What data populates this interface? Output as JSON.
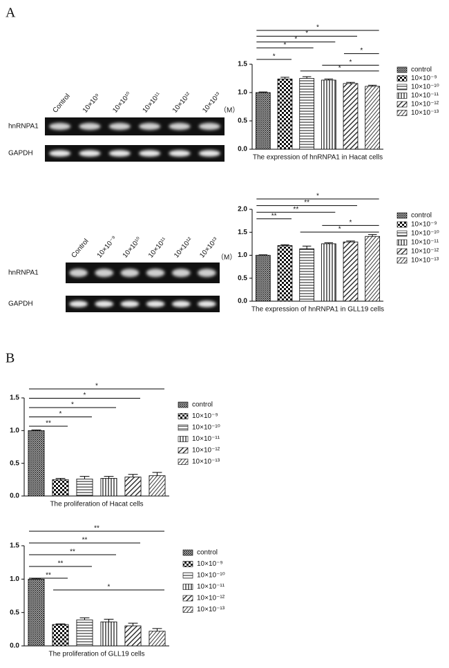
{
  "panel_labels": [
    "A",
    "B"
  ],
  "gels": [
    {
      "lanes": [
        "Control",
        "10×10⁹",
        "10×10¹⁰",
        "10×10¹¹",
        "10×10¹²",
        "10×10¹³"
      ],
      "unit": "（M）",
      "rows": [
        "hnRNPA1",
        "GAPDH"
      ]
    },
    {
      "lanes": [
        "Control",
        "10×10⁻⁹",
        "10×10¹⁰",
        "10×10¹¹",
        "10×10¹²",
        "10×10¹³"
      ],
      "unit": "（M）",
      "rows": [
        "hnRNPA1",
        "GAPDH"
      ]
    }
  ],
  "chart_data": [
    {
      "type": "bar",
      "title": "The expression of hnRNPA1 in Hacat cells",
      "ylim": [
        0,
        1.5
      ],
      "yticks": [
        {
          "value": 0,
          "label": "0.0"
        },
        0.5,
        {
          "value": 1,
          "label": "1.0"
        },
        1.5
      ],
      "series": [
        {
          "name": "control",
          "values": [
            1.0
          ],
          "errors": [
            0.01
          ]
        },
        {
          "name": "10×10⁻⁹",
          "values": [
            1.24
          ],
          "errors": [
            0.03
          ]
        },
        {
          "name": "10×10⁻¹⁰",
          "values": [
            1.25
          ],
          "errors": [
            0.03
          ]
        },
        {
          "name": "10×10⁻¹¹",
          "values": [
            1.22
          ],
          "errors": [
            0.02
          ]
        },
        {
          "name": "10×10⁻¹²",
          "values": [
            1.16
          ],
          "errors": [
            0.02
          ]
        },
        {
          "name": "10×10⁻¹³",
          "values": [
            1.11
          ],
          "errors": [
            0.02
          ]
        }
      ],
      "annotations": [
        {
          "text": "*",
          "from": 0,
          "to": 5
        },
        {
          "text": "*",
          "from": 0,
          "to": 4
        },
        {
          "text": "*",
          "from": 0,
          "to": 3
        },
        {
          "text": "*",
          "from": 0,
          "to": 2
        },
        {
          "text": "*",
          "from": 4,
          "to": 5
        },
        {
          "text": "*",
          "from": 0,
          "to": 1
        },
        {
          "text": "*",
          "from": 3,
          "to": 5
        },
        {
          "text": "*",
          "from": 2,
          "to": 5
        }
      ],
      "legend": "right"
    },
    {
      "type": "bar",
      "title": "The expression of hnRNPA1 in GLL19 cells",
      "ylim": [
        0,
        2
      ],
      "yticks": [
        {
          "value": 0,
          "label": "0.0"
        },
        0.5,
        {
          "value": 1,
          "label": "1.0"
        },
        1.5,
        {
          "value": 2,
          "label": "2.0"
        }
      ],
      "series": [
        {
          "name": "control",
          "values": [
            1.0
          ],
          "errors": [
            0.01
          ]
        },
        {
          "name": "10×10⁻⁹",
          "values": [
            1.21
          ],
          "errors": [
            0.02
          ]
        },
        {
          "name": "10×10⁻¹⁰",
          "values": [
            1.14
          ],
          "errors": [
            0.06
          ]
        },
        {
          "name": "10×10⁻¹¹",
          "values": [
            1.25
          ],
          "errors": [
            0.02
          ]
        },
        {
          "name": "10×10⁻¹²",
          "values": [
            1.29
          ],
          "errors": [
            0.02
          ]
        },
        {
          "name": "10×10⁻¹³",
          "values": [
            1.41
          ],
          "errors": [
            0.04
          ]
        }
      ],
      "annotations": [
        {
          "text": "*",
          "from": 0,
          "to": 5
        },
        {
          "text": "**",
          "from": 0,
          "to": 4
        },
        {
          "text": "**",
          "from": 0,
          "to": 3
        },
        {
          "text": "**",
          "from": 0,
          "to": 1
        },
        {
          "text": "*",
          "from": 3,
          "to": 5
        },
        {
          "text": "*",
          "from": 2,
          "to": 5
        }
      ],
      "legend": "right"
    },
    {
      "type": "bar",
      "title": "The proliferation of Hacat cells",
      "ylim": [
        0,
        1.5
      ],
      "yticks": [
        {
          "value": 0,
          "label": "0.0"
        },
        0.5,
        {
          "value": 1,
          "label": "1.0"
        },
        1.5
      ],
      "series": [
        {
          "name": "control",
          "values": [
            1.0
          ],
          "errors": [
            0.01
          ]
        },
        {
          "name": "10×10⁻⁹",
          "values": [
            0.25
          ],
          "errors": [
            0.02
          ]
        },
        {
          "name": "10×10⁻¹⁰",
          "values": [
            0.26
          ],
          "errors": [
            0.04
          ]
        },
        {
          "name": "10×10⁻¹¹",
          "values": [
            0.27
          ],
          "errors": [
            0.03
          ]
        },
        {
          "name": "10×10⁻¹²",
          "values": [
            0.29
          ],
          "errors": [
            0.04
          ]
        },
        {
          "name": "10×10⁻¹³",
          "values": [
            0.31
          ],
          "errors": [
            0.05
          ]
        }
      ],
      "annotations": [
        {
          "text": "*",
          "from": 0,
          "to": 5
        },
        {
          "text": "*",
          "from": 0,
          "to": 4
        },
        {
          "text": "*",
          "from": 0,
          "to": 3
        },
        {
          "text": "*",
          "from": 0,
          "to": 2
        },
        {
          "text": "**",
          "from": 0,
          "to": 1
        }
      ],
      "legend": "right"
    },
    {
      "type": "bar",
      "title": "The proliferation of GLL19 cells",
      "ylim": [
        0,
        1.5
      ],
      "yticks": [
        {
          "value": 0,
          "label": "0.0"
        },
        0.5,
        {
          "value": 1,
          "label": "1.0"
        },
        1.5
      ],
      "series": [
        {
          "name": "control",
          "values": [
            1.0
          ],
          "errors": [
            0.01
          ]
        },
        {
          "name": "10×10⁻⁹",
          "values": [
            0.32
          ],
          "errors": [
            0.01
          ]
        },
        {
          "name": "10×10⁻¹⁰",
          "values": [
            0.39
          ],
          "errors": [
            0.03
          ]
        },
        {
          "name": "10×10⁻¹¹",
          "values": [
            0.36
          ],
          "errors": [
            0.04
          ]
        },
        {
          "name": "10×10⁻¹²",
          "values": [
            0.3
          ],
          "errors": [
            0.04
          ]
        },
        {
          "name": "10×10⁻¹³",
          "values": [
            0.22
          ],
          "errors": [
            0.04
          ]
        }
      ],
      "annotations": [
        {
          "text": "**",
          "from": 0,
          "to": 5
        },
        {
          "text": "**",
          "from": 0,
          "to": 4
        },
        {
          "text": "**",
          "from": 0,
          "to": 3
        },
        {
          "text": "**",
          "from": 0,
          "to": 2
        },
        {
          "text": "**",
          "from": 0,
          "to": 1
        },
        {
          "text": "*",
          "from": 1,
          "to": 5
        }
      ],
      "legend": "right"
    }
  ]
}
